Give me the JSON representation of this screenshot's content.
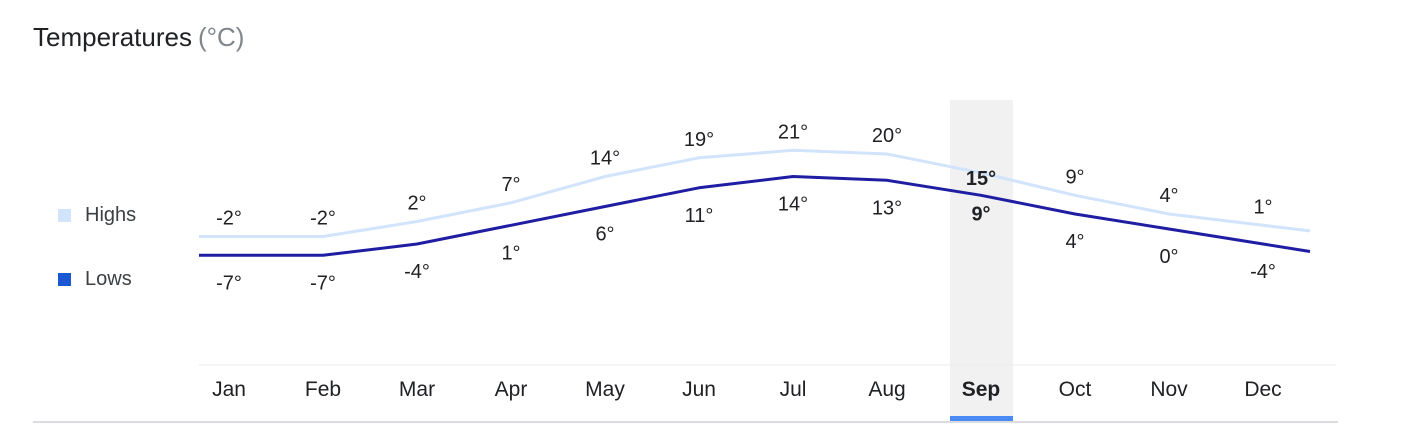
{
  "title": "Temperatures",
  "unit": "(°C)",
  "legend": [
    {
      "label": "Highs",
      "color": "#d2e3fc"
    },
    {
      "label": "Lows",
      "color": "#1a57d2"
    }
  ],
  "selected_month": "Sep",
  "colors": {
    "highs_line": "#d2e3fc",
    "lows_line": "#1f1ea3",
    "selected_band": "#f1f1f1",
    "selected_marker": "#4a8af4",
    "text": "#202124"
  },
  "chart_data": {
    "type": "line",
    "title": "Temperatures (°C)",
    "categories": [
      "Jan",
      "Feb",
      "Mar",
      "Apr",
      "May",
      "Jun",
      "Jul",
      "Aug",
      "Sep",
      "Oct",
      "Nov",
      "Dec"
    ],
    "series": [
      {
        "name": "Highs",
        "values": [
          -2,
          -2,
          2,
          7,
          14,
          19,
          21,
          20,
          15,
          9,
          4,
          1
        ]
      },
      {
        "name": "Lows",
        "values": [
          -7,
          -7,
          -4,
          1,
          6,
          11,
          14,
          13,
          9,
          4,
          0,
          -4
        ]
      }
    ],
    "value_labels": {
      "Highs": [
        "-2°",
        "-2°",
        "2°",
        "7°",
        "14°",
        "19°",
        "21°",
        "20°",
        "15°",
        "9°",
        "4°",
        "1°"
      ],
      "Lows": [
        "-7°",
        "-7°",
        "-4°",
        "1°",
        "6°",
        "11°",
        "14°",
        "13°",
        "9°",
        "4°",
        "0°",
        "-4°"
      ]
    },
    "legend": "left",
    "grid": false
  }
}
